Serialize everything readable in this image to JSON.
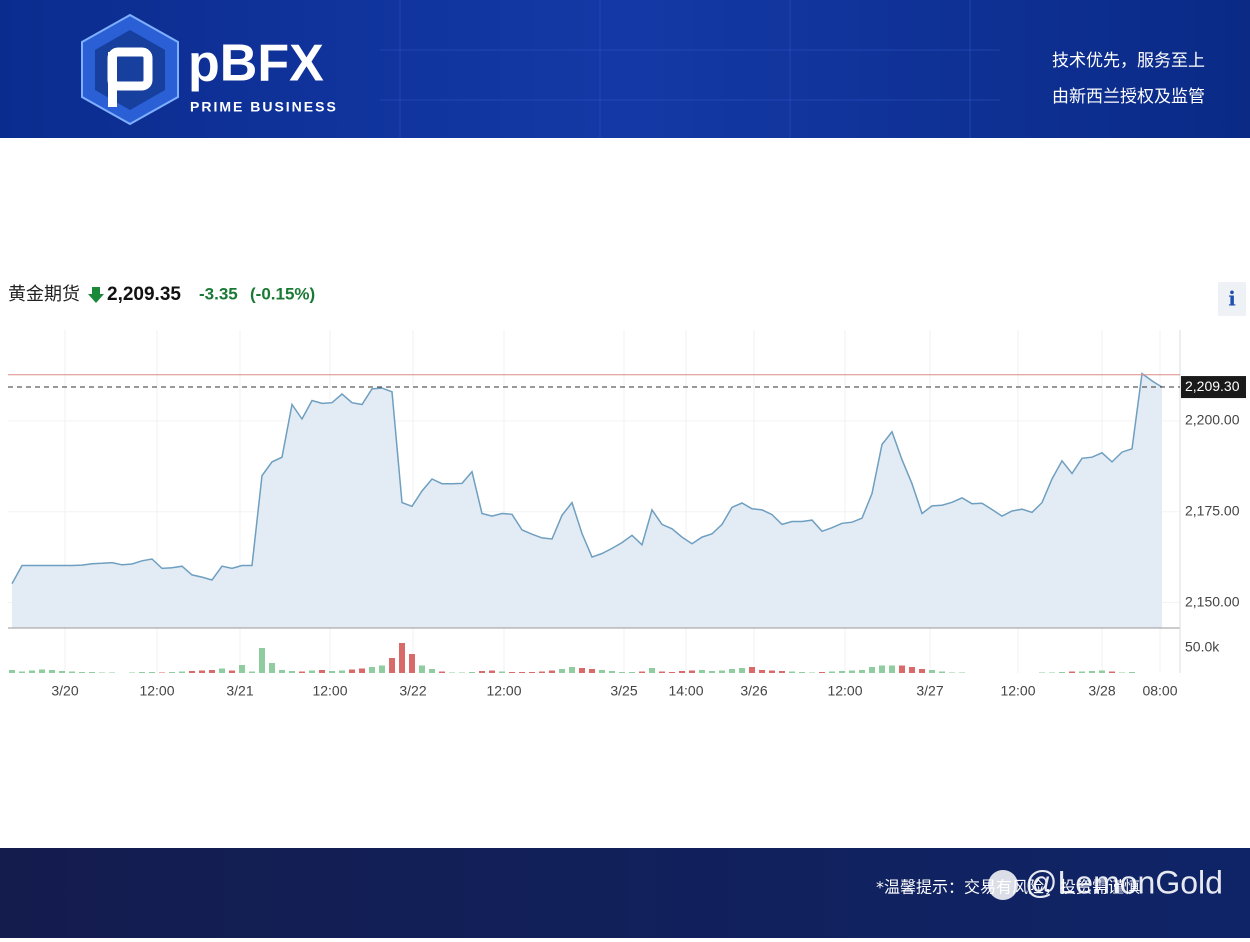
{
  "header": {
    "brand": "pBFX",
    "tagline": "PRIME BUSINESS",
    "slogan": "技术优先，服务至上",
    "license": "由新西兰授权及监管"
  },
  "footer": {
    "notice": "*温馨提示：交易有风险，投资需谨慎",
    "watermark": "@LemonGold"
  },
  "info_button": "i",
  "chart_data": {
    "type": "line",
    "title": "黄金期货",
    "price": "2,209.35",
    "change": "-3.35",
    "change_pct": "(-0.15%)",
    "line_color": "#6f9fc0",
    "fill_color": "#e3ecf5",
    "values": [
      2155.2,
      2160.2,
      2160.2,
      2160.2,
      2160.2,
      2160.2,
      2160.2,
      2160.3,
      2160.7,
      2160.8,
      2161,
      2160.4,
      2160.6,
      2161.5,
      2162,
      2159.4,
      2159.6,
      2160,
      2157.6,
      2157.0,
      2156.2,
      2160.0,
      2159.4,
      2160.2,
      2160.2,
      2184.9,
      2188.7,
      2190,
      2204.5,
      2200.5,
      2205.6,
      2204.8,
      2205,
      2207.4,
      2205,
      2204.5,
      2208.8,
      2209,
      2208,
      2177.5,
      2176.5,
      2180.7,
      2184,
      2182.7,
      2182.7,
      2182.8,
      2186,
      2174.5,
      2173.8,
      2174.5,
      2174.3,
      2170,
      2168.8,
      2167.8,
      2167.5,
      2174,
      2177.5,
      2169,
      2162.5,
      2163.5,
      2164.9,
      2166.5,
      2168.5,
      2165.9,
      2175.5,
      2171.5,
      2170.3,
      2168,
      2166.2,
      2168,
      2168.9,
      2171.5,
      2176.2,
      2177.4,
      2175.8,
      2175.5,
      2174.2,
      2171.5,
      2172.3,
      2172.3,
      2172.7,
      2169.6,
      2170.6,
      2171.8,
      2172.1,
      2173.2,
      2180,
      2193.5,
      2197,
      2189.3,
      2182.7,
      2174.5,
      2176.6,
      2176.8,
      2177.6,
      2178.8,
      2177.2,
      2177.3,
      2175.6,
      2173.8,
      2175.2,
      2175.7,
      2174.8,
      2177.5,
      2184,
      2189,
      2185.5,
      2189.7,
      2190,
      2191.2,
      2188.7,
      2191.4,
      2192.3,
      2213,
      2211,
      2209.3
    ],
    "volume": {
      "axis": "y2",
      "up_color": "#8fcc9f",
      "down_color": "#d86a6a",
      "values": [
        6000,
        3000,
        5000,
        7000,
        6000,
        4000,
        3000,
        2000,
        2000,
        1000,
        1000,
        0,
        1000,
        2000,
        2000,
        1000,
        2000,
        3000,
        4000,
        5000,
        6000,
        9000,
        5000,
        16000,
        3000,
        50000,
        20000,
        6000,
        4000,
        3000,
        5000,
        6000,
        4000,
        5000,
        7000,
        9000,
        12000,
        15000,
        30000,
        60000,
        38000,
        15000,
        8000,
        3000,
        1000,
        1000,
        2000,
        4000,
        5000,
        3000,
        2000,
        2000,
        2000,
        3000,
        5000,
        8000,
        12000,
        10000,
        8000,
        6000,
        4000,
        2000,
        2000,
        3000,
        10000,
        3000,
        2000,
        4000,
        5000,
        6000,
        4000,
        5000,
        8000,
        10000,
        12000,
        6000,
        5000,
        4000,
        3000,
        2000,
        1000,
        2000,
        3000,
        4000,
        5000,
        6000,
        12000,
        15000,
        15000,
        15000,
        12000,
        8000,
        6000,
        3000,
        1000,
        1000,
        0,
        0,
        0,
        0,
        0,
        0,
        0,
        1000,
        1000,
        2000,
        3000,
        3000,
        4000,
        5000,
        3000,
        1000,
        2000,
        0,
        0,
        0
      ]
    },
    "xlim": [
      -0.4,
      116.8
    ],
    "xticks": [
      {
        "value": 5.3,
        "label": "3/20"
      },
      {
        "value": 14.5,
        "label": "12:00"
      },
      {
        "value": 22.8,
        "label": "3/21"
      },
      {
        "value": 31.8,
        "label": "12:00"
      },
      {
        "value": 40.1,
        "label": "3/22"
      },
      {
        "value": 49.2,
        "label": "12:00"
      },
      {
        "value": 61.2,
        "label": "3/25"
      },
      {
        "value": 67.4,
        "label": "14:00"
      },
      {
        "value": 74.2,
        "label": "3/26"
      },
      {
        "value": 83.3,
        "label": "12:00"
      },
      {
        "value": 91.8,
        "label": "3/27"
      },
      {
        "value": 100.6,
        "label": "12:00"
      },
      {
        "value": 109,
        "label": "3/28"
      },
      {
        "value": 114.8,
        "label": "08:00"
      }
    ],
    "ylim": [
      2143,
      2225
    ],
    "yticks": [
      {
        "value": 2150,
        "label": "2,150.00"
      },
      {
        "value": 2175,
        "label": "2,175.00"
      },
      {
        "value": 2200,
        "label": "2,200.00"
      }
    ],
    "y2lim": [
      0,
      90000
    ],
    "y2ticks": [
      {
        "value": 50000,
        "label": "50.0k"
      }
    ],
    "last_price": {
      "value": 2209.3,
      "label": "2,209.30"
    },
    "prev_close": 2212.7,
    "prev_close_color": "#e08a8a",
    "grid": true
  }
}
